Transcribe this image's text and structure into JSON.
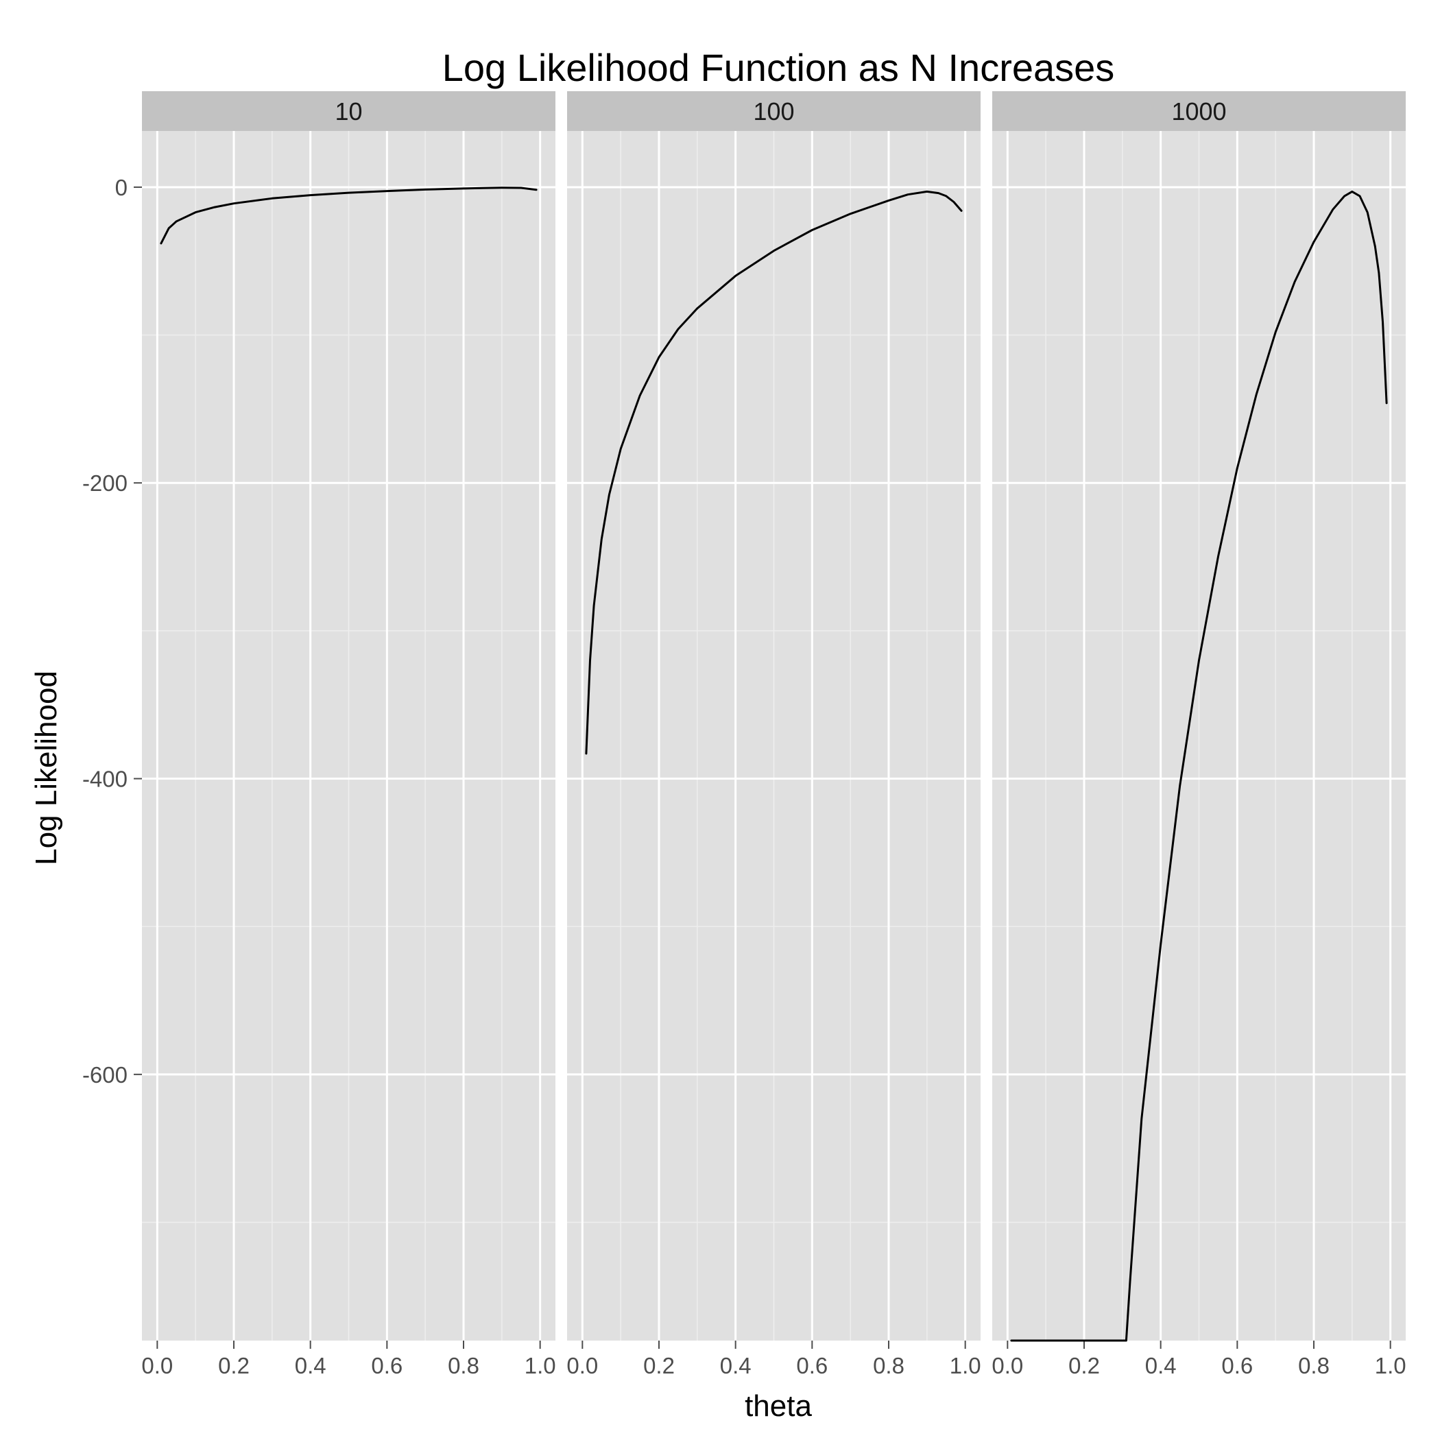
{
  "chart_data": {
    "type": "line",
    "title": "Log Likelihood Function as N Increases",
    "xlabel": "theta",
    "ylabel": "Log Likelihood",
    "xlim": [
      -0.04,
      1.04
    ],
    "ylim": [
      -780,
      38
    ],
    "x_ticks": [
      0,
      0.2,
      0.4,
      0.6,
      0.8,
      1.0
    ],
    "x_tick_labels": [
      "0.0",
      "0.2",
      "0.4",
      "0.6",
      "0.8",
      "1.0"
    ],
    "y_ticks": [
      0,
      -200,
      -400,
      -600
    ],
    "y_tick_labels": [
      "0",
      "-200",
      "-400",
      "-600"
    ],
    "grid": true,
    "facets": [
      {
        "label": "10",
        "series": [
          {
            "x": [
              0.01,
              0.03,
              0.05,
              0.1,
              0.15,
              0.2,
              0.3,
              0.4,
              0.5,
              0.6,
              0.7,
              0.8,
              0.85,
              0.9,
              0.95,
              0.99
            ],
            "y": [
              -38,
              -27.8,
              -23.1,
              -17.0,
              -13.5,
              -11.0,
              -7.6,
              -5.4,
              -3.8,
              -2.6,
              -1.6,
              -0.9,
              -0.6,
              -0.4,
              -0.5,
              -1.8
            ]
          }
        ]
      },
      {
        "label": "100",
        "series": [
          {
            "x": [
              0.01,
              0.02,
              0.03,
              0.05,
              0.07,
              0.1,
              0.15,
              0.2,
              0.25,
              0.3,
              0.4,
              0.5,
              0.6,
              0.7,
              0.8,
              0.85,
              0.9,
              0.93,
              0.95,
              0.97,
              0.99
            ],
            "y": [
              -383,
              -320,
              -283,
              -238,
              -208,
              -177,
              -141,
              -115,
              -96,
              -82,
              -60,
              -43,
              -29,
              -18,
              -9,
              -5,
              -3,
              -4,
              -6,
              -10,
              -16
            ]
          }
        ]
      },
      {
        "label": "1000",
        "series": [
          {
            "x": [
              0.01,
              0.05,
              0.1,
              0.2,
              0.3,
              0.31,
              0.32,
              0.35,
              0.4,
              0.45,
              0.5,
              0.55,
              0.6,
              0.65,
              0.7,
              0.75,
              0.8,
              0.85,
              0.88,
              0.9,
              0.92,
              0.94,
              0.96,
              0.97,
              0.98,
              0.99
            ],
            "y": [
              -780,
              -780,
              -780,
              -780,
              -780,
              -780,
              -740,
              -630,
              -512,
              -405,
              -320,
              -250,
              -190,
              -140,
              -98,
              -64,
              -37,
              -15,
              -6,
              -3,
              -6,
              -17,
              -40,
              -58,
              -91,
              -146
            ]
          }
        ]
      }
    ]
  }
}
